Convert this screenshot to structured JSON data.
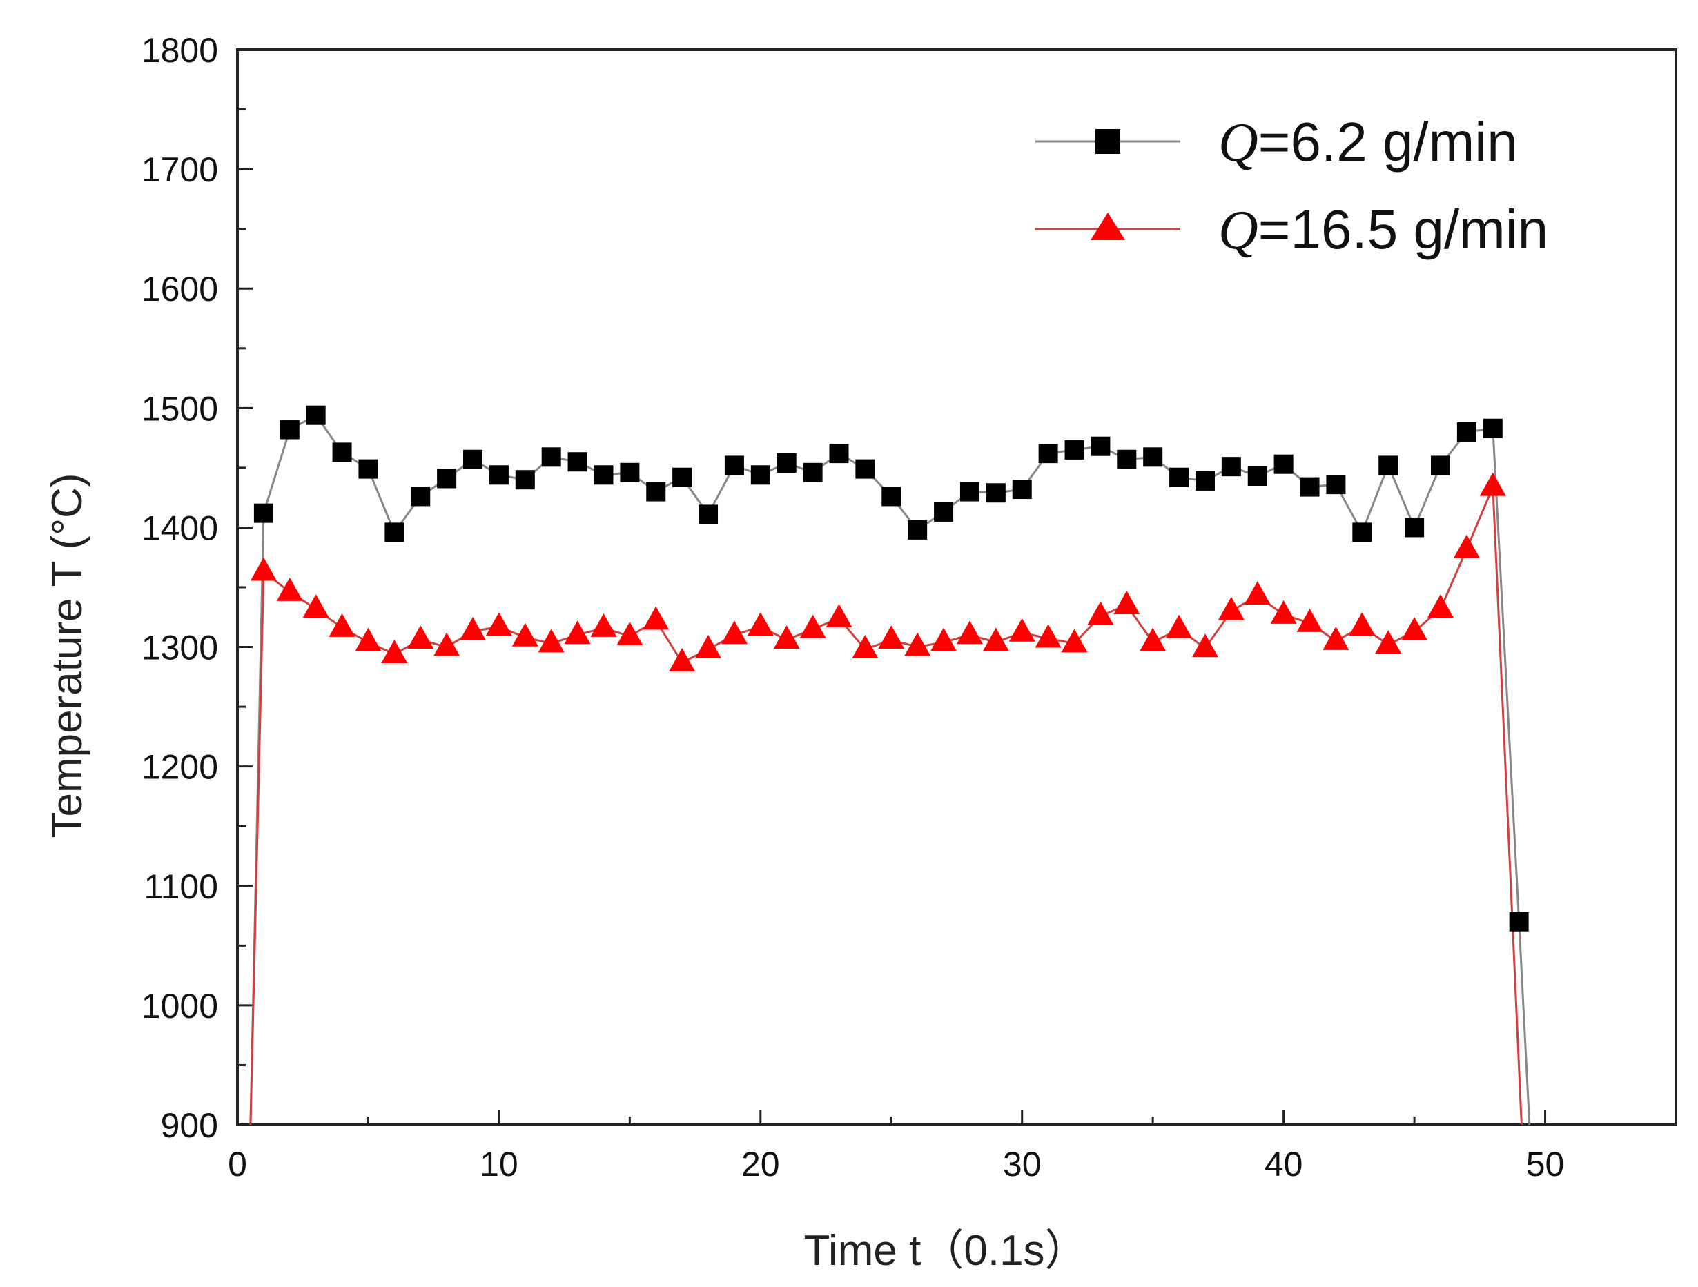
{
  "chart_data": {
    "type": "line",
    "title": "",
    "xlabel": "Time t（0.1s）",
    "ylabel": "Temperature T (°C)",
    "xlim": [
      0,
      55
    ],
    "ylim": [
      900,
      1800
    ],
    "xticks": [
      0,
      10,
      20,
      30,
      40,
      50
    ],
    "yticks": [
      900,
      1000,
      1100,
      1200,
      1300,
      1400,
      1500,
      1600,
      1700,
      1800
    ],
    "legend_position": "top-right",
    "series": [
      {
        "name": "Q=6.2 g/min",
        "legend_symbol": "Q",
        "legend_text": "=6.2 g/min",
        "color": "#000000",
        "line_color": "#888888",
        "marker": "square",
        "x": [
          0.5,
          1,
          2,
          3,
          4,
          5,
          6,
          7,
          8,
          9,
          10,
          11,
          12,
          13,
          14,
          15,
          16,
          17,
          18,
          19,
          20,
          21,
          22,
          23,
          24,
          25,
          26,
          27,
          28,
          29,
          30,
          31,
          32,
          33,
          34,
          35,
          36,
          37,
          38,
          39,
          40,
          41,
          42,
          43,
          44,
          45,
          46,
          47,
          48,
          49,
          49.4
        ],
        "y": [
          900,
          1412,
          1482,
          1494,
          1463,
          1449,
          1396,
          1426,
          1441,
          1457,
          1444,
          1440,
          1459,
          1455,
          1444,
          1446,
          1430,
          1442,
          1411,
          1452,
          1444,
          1454,
          1446,
          1462,
          1449,
          1426,
          1398,
          1413,
          1430,
          1429,
          1432,
          1462,
          1465,
          1468,
          1457,
          1459,
          1442,
          1439,
          1451,
          1443,
          1453,
          1434,
          1436,
          1396,
          1452,
          1400,
          1452,
          1480,
          1483,
          1070,
          900
        ],
        "marked": [
          false,
          true,
          true,
          true,
          true,
          true,
          true,
          true,
          true,
          true,
          true,
          true,
          true,
          true,
          true,
          true,
          true,
          true,
          true,
          true,
          true,
          true,
          true,
          true,
          true,
          true,
          true,
          true,
          true,
          true,
          true,
          true,
          true,
          true,
          true,
          true,
          true,
          true,
          true,
          true,
          true,
          true,
          true,
          true,
          true,
          true,
          true,
          true,
          true,
          true,
          false
        ]
      },
      {
        "name": "Q=16.5 g/min",
        "legend_symbol": "Q",
        "legend_text": "=16.5 g/min",
        "color": "#ff0000",
        "line_color": "#d04040",
        "marker": "triangle",
        "x": [
          0.5,
          1,
          2,
          3,
          4,
          5,
          6,
          7,
          8,
          9,
          10,
          11,
          12,
          13,
          14,
          15,
          16,
          17,
          18,
          19,
          20,
          21,
          22,
          23,
          24,
          25,
          26,
          27,
          28,
          29,
          30,
          31,
          32,
          33,
          34,
          35,
          36,
          37,
          38,
          39,
          40,
          41,
          42,
          43,
          44,
          45,
          46,
          47,
          48,
          49.1
        ],
        "y": [
          900,
          1363,
          1346,
          1332,
          1316,
          1304,
          1294,
          1306,
          1300,
          1313,
          1317,
          1308,
          1303,
          1310,
          1316,
          1309,
          1322,
          1287,
          1298,
          1310,
          1317,
          1306,
          1315,
          1324,
          1298,
          1306,
          1300,
          1304,
          1310,
          1304,
          1312,
          1307,
          1303,
          1326,
          1335,
          1304,
          1315,
          1299,
          1330,
          1343,
          1327,
          1320,
          1305,
          1317,
          1302,
          1313,
          1332,
          1382,
          1434,
          900
        ],
        "marked": [
          false,
          true,
          true,
          true,
          true,
          true,
          true,
          true,
          true,
          true,
          true,
          true,
          true,
          true,
          true,
          true,
          true,
          true,
          true,
          true,
          true,
          true,
          true,
          true,
          true,
          true,
          true,
          true,
          true,
          true,
          true,
          true,
          true,
          true,
          true,
          true,
          true,
          true,
          true,
          true,
          true,
          true,
          true,
          true,
          true,
          true,
          true,
          true,
          true,
          false
        ]
      }
    ]
  }
}
